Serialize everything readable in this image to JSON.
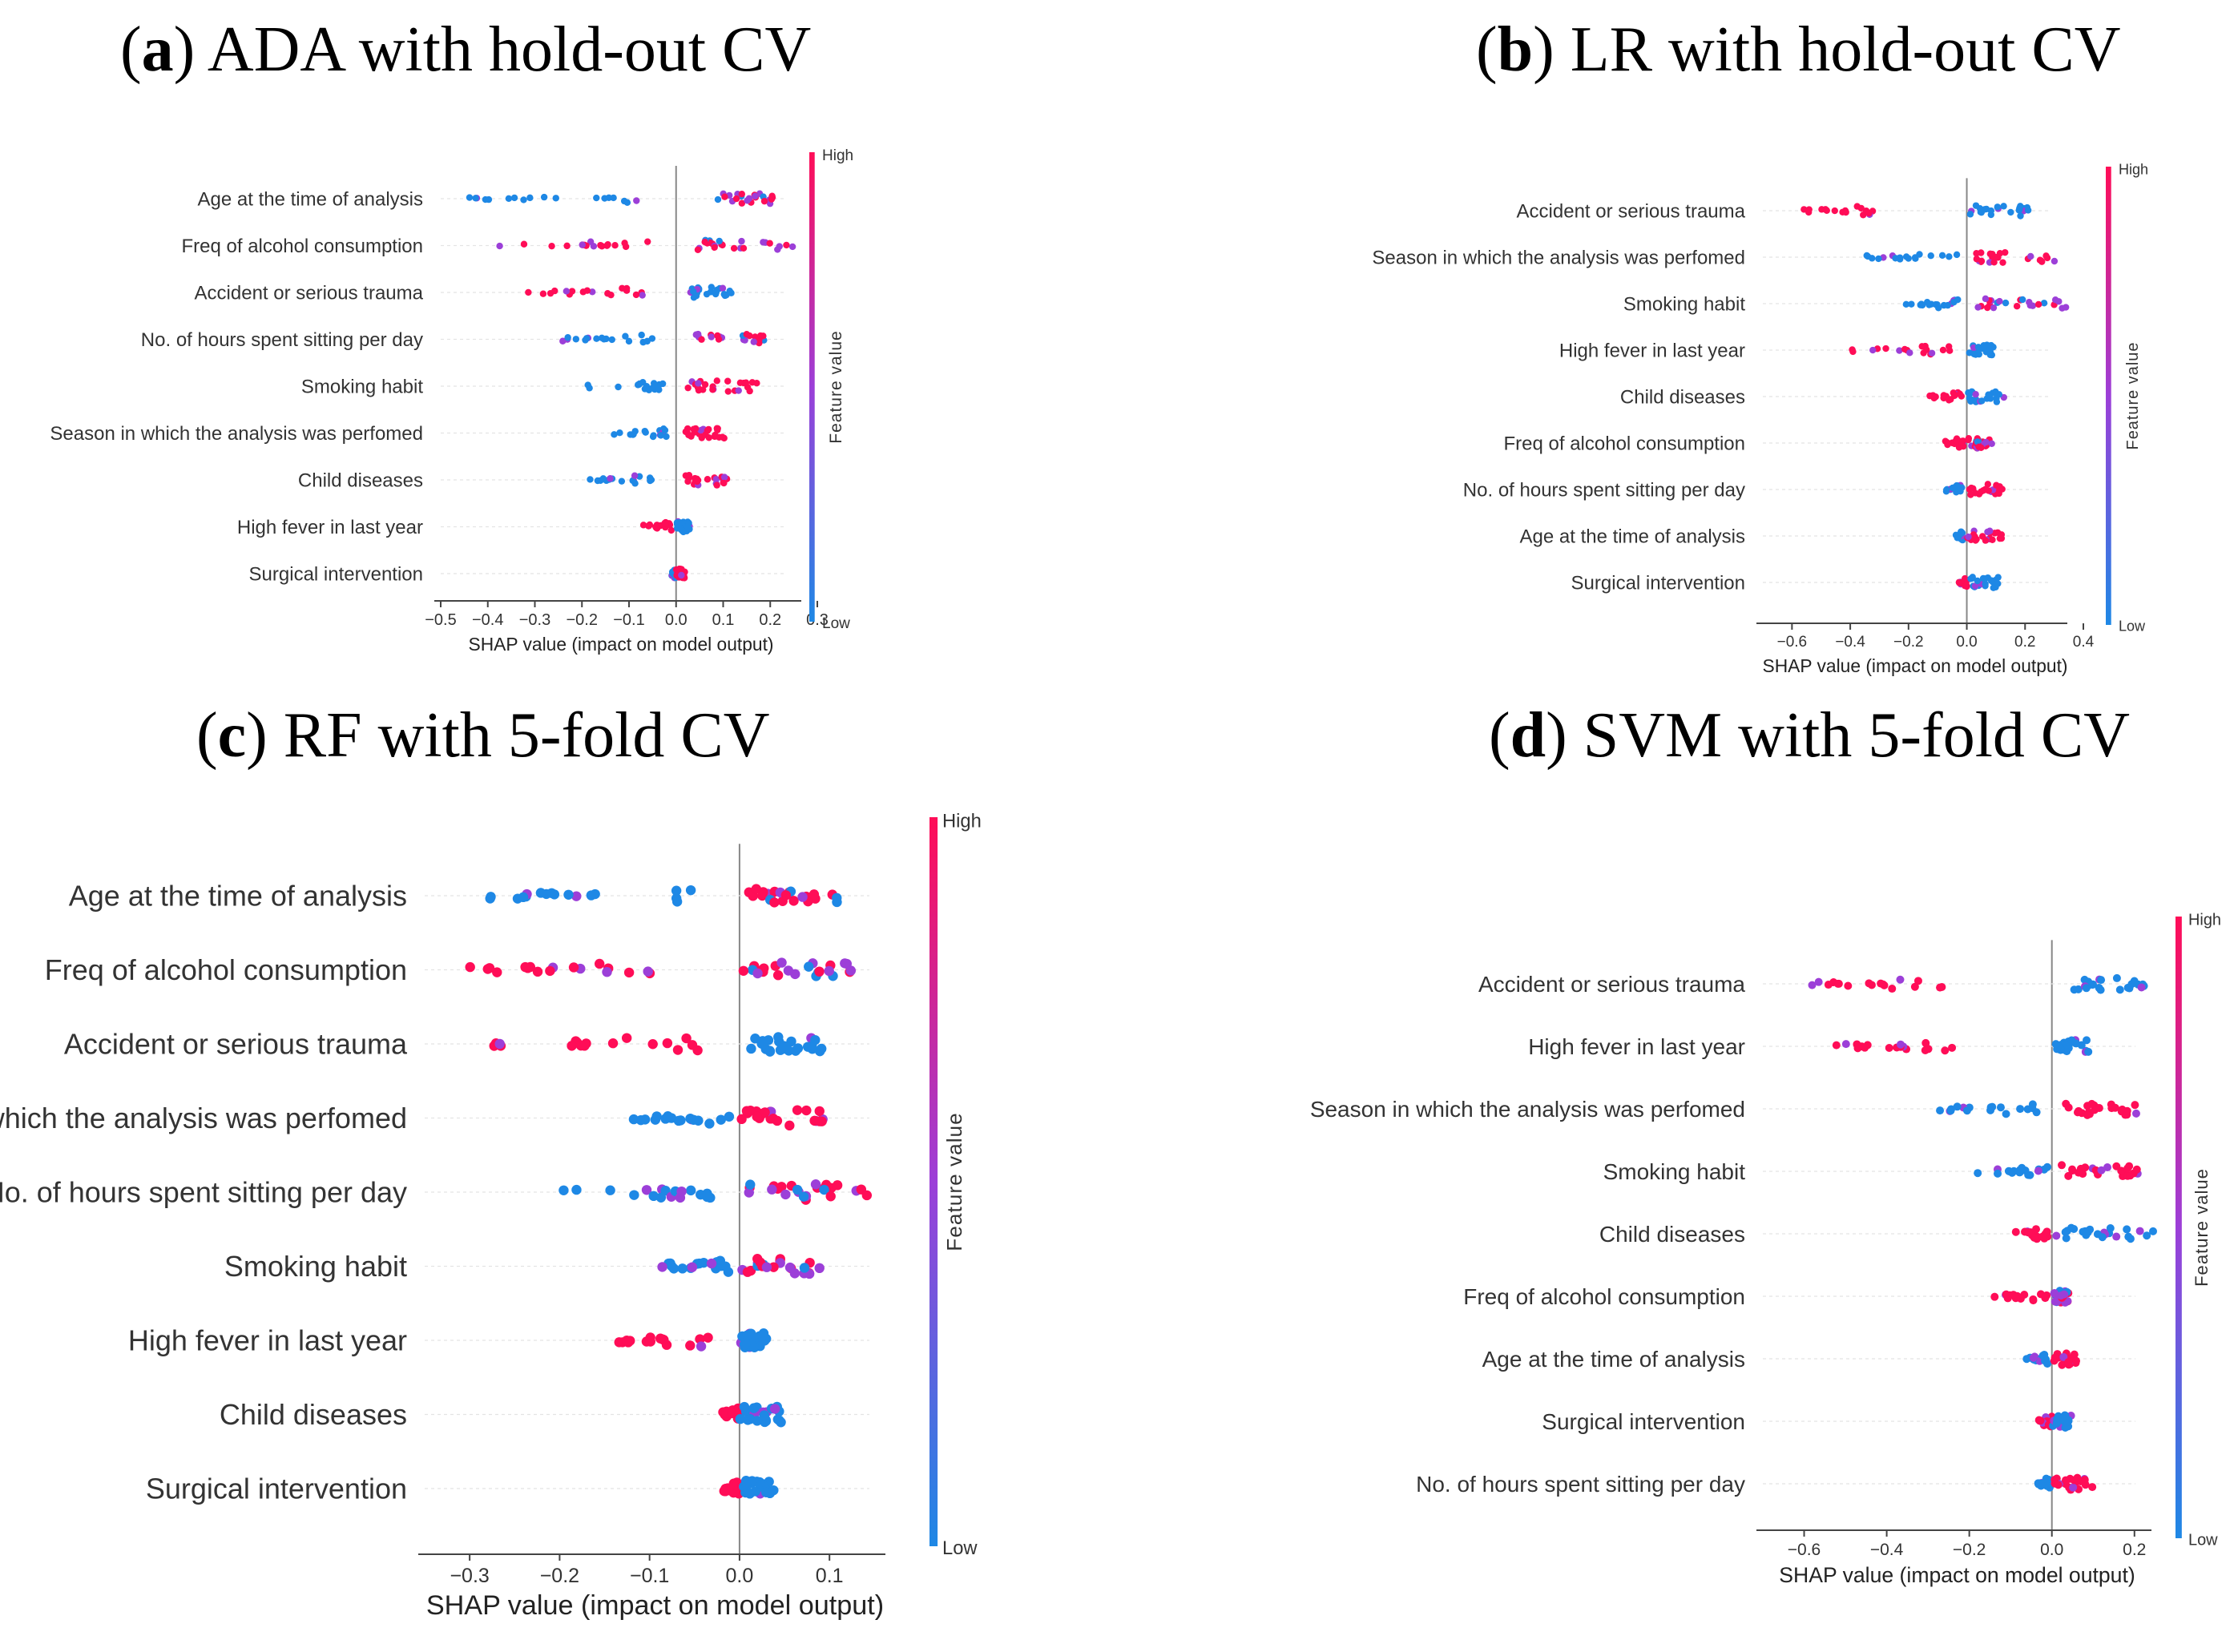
{
  "colors": {
    "low": "#1e88e5",
    "mid": "#9c3fd8",
    "high": "#ff0d57",
    "axis": "#444444",
    "zero": "#888888"
  },
  "chart_data": [
    {
      "type": "scatter",
      "subtype": "shap-beeswarm",
      "label": "a",
      "title_rest": ") ADA with hold-out CV",
      "xlabel": "SHAP value (impact on model output)",
      "xlim": [
        -0.5,
        0.3
      ],
      "xticks": [
        "−0.5",
        "−0.4",
        "−0.3",
        "−0.2",
        "−0.1",
        "0.0",
        "0.1",
        "0.2",
        "0.3"
      ],
      "xtick_values": [
        -0.5,
        -0.4,
        -0.3,
        -0.2,
        -0.1,
        0.0,
        0.1,
        0.2,
        0.3
      ],
      "colorbar": {
        "high": "High",
        "low": "Low",
        "label": "Feature value"
      },
      "features": [
        {
          "name": "Age at the time of analysis",
          "neg": [
            -0.48,
            -0.02
          ],
          "pos": [
            0.08,
            0.22
          ],
          "neg_color": "low",
          "pos_color": "mix"
        },
        {
          "name": "Freq of alcohol consumption",
          "neg": [
            -0.41,
            -0.03
          ],
          "pos": [
            0.02,
            0.27
          ],
          "neg_color": "high",
          "pos_color": "mix"
        },
        {
          "name": "Accident or serious trauma",
          "neg": [
            -0.33,
            -0.07
          ],
          "pos": [
            0.03,
            0.13
          ],
          "neg_color": "high",
          "pos_color": "low"
        },
        {
          "name": "No. of hours spent sitting per day",
          "neg": [
            -0.26,
            -0.04
          ],
          "pos": [
            0.02,
            0.2
          ],
          "neg_color": "low",
          "pos_color": "mix"
        },
        {
          "name": "Smoking habit",
          "neg": [
            -0.2,
            -0.02
          ],
          "pos": [
            0.02,
            0.18
          ],
          "neg_color": "low",
          "pos_color": "high"
        },
        {
          "name": "Season in which the analysis was perfomed",
          "neg": [
            -0.14,
            -0.02
          ],
          "pos": [
            0.01,
            0.11
          ],
          "neg_color": "low",
          "pos_color": "high"
        },
        {
          "name": "Child diseases",
          "neg": [
            -0.22,
            -0.05
          ],
          "pos": [
            0.01,
            0.11
          ],
          "neg_color": "low",
          "pos_color": "high"
        },
        {
          "name": "High fever in last year",
          "neg": [
            -0.07,
            -0.01
          ],
          "pos": [
            0.0,
            0.03
          ],
          "neg_color": "high",
          "pos_color": "low"
        },
        {
          "name": "Surgical intervention",
          "neg": [
            -0.01,
            0.0
          ],
          "pos": [
            0.0,
            0.02
          ],
          "neg_color": "low",
          "pos_color": "high"
        }
      ]
    },
    {
      "type": "scatter",
      "subtype": "shap-beeswarm",
      "label": "b",
      "title_rest": ") LR with hold-out CV",
      "xlabel": "SHAP value (impact on model output)",
      "xlim": [
        -0.7,
        0.4
      ],
      "xticks": [
        "−0.6",
        "−0.4",
        "−0.2",
        "0.0",
        "0.2",
        "0.4"
      ],
      "xtick_values": [
        -0.6,
        -0.4,
        -0.2,
        0.0,
        0.2,
        0.4
      ],
      "colorbar": {
        "high": "High",
        "low": "Low",
        "label": "Feature value"
      },
      "features": [
        {
          "name": "Accident or serious trauma",
          "neg": [
            -0.63,
            -0.25
          ],
          "pos": [
            0.0,
            0.22
          ],
          "neg_color": "high",
          "pos_color": "low"
        },
        {
          "name": "Season in which the analysis was perfomed",
          "neg": [
            -0.38,
            -0.03
          ],
          "pos": [
            0.01,
            0.32
          ],
          "neg_color": "low",
          "pos_color": "high"
        },
        {
          "name": "Smoking habit",
          "neg": [
            -0.22,
            -0.03
          ],
          "pos": [
            0.0,
            0.36
          ],
          "neg_color": "low",
          "pos_color": "mix"
        },
        {
          "name": "High fever in last year",
          "neg": [
            -0.43,
            -0.05
          ],
          "pos": [
            0.0,
            0.1
          ],
          "neg_color": "high",
          "pos_color": "low"
        },
        {
          "name": "Child diseases",
          "neg": [
            -0.15,
            -0.01
          ],
          "pos": [
            0.0,
            0.13
          ],
          "neg_color": "high",
          "pos_color": "low"
        },
        {
          "name": "Freq of alcohol consumption",
          "neg": [
            -0.08,
            -0.01
          ],
          "pos": [
            0.0,
            0.09
          ],
          "neg_color": "high",
          "pos_color": "mix"
        },
        {
          "name": "No. of hours spent sitting per day",
          "neg": [
            -0.08,
            -0.01
          ],
          "pos": [
            0.0,
            0.13
          ],
          "neg_color": "low",
          "pos_color": "high"
        },
        {
          "name": "Age at the time of analysis",
          "neg": [
            -0.04,
            -0.01
          ],
          "pos": [
            0.0,
            0.13
          ],
          "neg_color": "low",
          "pos_color": "high"
        },
        {
          "name": "Surgical intervention",
          "neg": [
            -0.03,
            0.0
          ],
          "pos": [
            0.0,
            0.11
          ],
          "neg_color": "high",
          "pos_color": "low"
        }
      ]
    },
    {
      "type": "scatter",
      "subtype": "shap-beeswarm",
      "label": "c",
      "title_rest": ") RF with 5-fold CV",
      "xlabel": "SHAP value (impact on model output)",
      "xlim": [
        -0.35,
        0.18
      ],
      "xticks": [
        "−0.3",
        "−0.2",
        "−0.1",
        "0.0",
        "0.1"
      ],
      "xtick_values": [
        -0.3,
        -0.2,
        -0.1,
        0.0,
        0.1
      ],
      "colorbar": {
        "high": "High",
        "low": "Low",
        "label": "Feature value"
      },
      "features": [
        {
          "name": "Age at the time of analysis",
          "neg": [
            -0.29,
            -0.04
          ],
          "pos": [
            0.0,
            0.12
          ],
          "neg_color": "low",
          "pos_color": "mix"
        },
        {
          "name": "Freq of alcohol consumption",
          "neg": [
            -0.32,
            -0.08
          ],
          "pos": [
            0.0,
            0.14
          ],
          "neg_color": "high",
          "pos_color": "mix"
        },
        {
          "name": "Accident or serious trauma",
          "neg": [
            -0.3,
            -0.04
          ],
          "pos": [
            0.01,
            0.1
          ],
          "neg_color": "high",
          "pos_color": "low"
        },
        {
          "name": "Season in which the analysis was perfomed",
          "neg": [
            -0.12,
            -0.01
          ],
          "pos": [
            0.0,
            0.1
          ],
          "neg_color": "low",
          "pos_color": "high"
        },
        {
          "name": "No. of hours spent sitting per day",
          "neg": [
            -0.21,
            -0.03
          ],
          "pos": [
            0.0,
            0.16
          ],
          "neg_color": "low",
          "pos_color": "mix"
        },
        {
          "name": "Smoking habit",
          "neg": [
            -0.09,
            -0.01
          ],
          "pos": [
            0.0,
            0.09
          ],
          "neg_color": "low",
          "pos_color": "mix"
        },
        {
          "name": "High fever in last year",
          "neg": [
            -0.16,
            -0.03
          ],
          "pos": [
            0.0,
            0.03
          ],
          "neg_color": "high",
          "pos_color": "low"
        },
        {
          "name": "Child diseases",
          "neg": [
            -0.02,
            0.0
          ],
          "pos": [
            0.0,
            0.05
          ],
          "neg_color": "high",
          "pos_color": "low"
        },
        {
          "name": "Surgical intervention",
          "neg": [
            -0.02,
            0.0
          ],
          "pos": [
            0.0,
            0.04
          ],
          "neg_color": "high",
          "pos_color": "low"
        }
      ]
    },
    {
      "type": "scatter",
      "subtype": "shap-beeswarm",
      "label": "d",
      "title_rest": ") SVM with 5-fold CV",
      "xlabel": "SHAP value (impact on model output)",
      "xlim": [
        -0.7,
        0.28
      ],
      "xticks": [
        "−0.6",
        "−0.4",
        "−0.2",
        "0.0",
        "0.2"
      ],
      "xtick_values": [
        -0.6,
        -0.4,
        -0.2,
        0.0,
        0.2
      ],
      "colorbar": {
        "high": "High",
        "low": "Low",
        "label": "Feature value"
      },
      "features": [
        {
          "name": "Accident or serious trauma",
          "neg": [
            -0.66,
            -0.25
          ],
          "pos": [
            0.05,
            0.23
          ],
          "neg_color": "high",
          "pos_color": "low"
        },
        {
          "name": "High fever in last year",
          "neg": [
            -0.56,
            -0.22
          ],
          "pos": [
            0.0,
            0.1
          ],
          "neg_color": "high",
          "pos_color": "low"
        },
        {
          "name": "Season in which the analysis was perfomed",
          "neg": [
            -0.3,
            -0.02
          ],
          "pos": [
            0.0,
            0.26
          ],
          "neg_color": "low",
          "pos_color": "high"
        },
        {
          "name": "Smoking habit",
          "neg": [
            -0.2,
            -0.01
          ],
          "pos": [
            0.0,
            0.23
          ],
          "neg_color": "low",
          "pos_color": "high"
        },
        {
          "name": "Child diseases",
          "neg": [
            -0.1,
            -0.01
          ],
          "pos": [
            0.0,
            0.27
          ],
          "neg_color": "high",
          "pos_color": "low"
        },
        {
          "name": "Freq of alcohol consumption",
          "neg": [
            -0.15,
            -0.01
          ],
          "pos": [
            0.0,
            0.05
          ],
          "neg_color": "high",
          "pos_color": "mix"
        },
        {
          "name": "Age at the time of analysis",
          "neg": [
            -0.07,
            -0.01
          ],
          "pos": [
            0.0,
            0.06
          ],
          "neg_color": "low",
          "pos_color": "high"
        },
        {
          "name": "Surgical intervention",
          "neg": [
            -0.05,
            0.0
          ],
          "pos": [
            0.0,
            0.05
          ],
          "neg_color": "high",
          "pos_color": "low"
        },
        {
          "name": "No. of hours spent sitting per day",
          "neg": [
            -0.04,
            0.0
          ],
          "pos": [
            0.0,
            0.1
          ],
          "neg_color": "low",
          "pos_color": "high"
        }
      ]
    }
  ]
}
